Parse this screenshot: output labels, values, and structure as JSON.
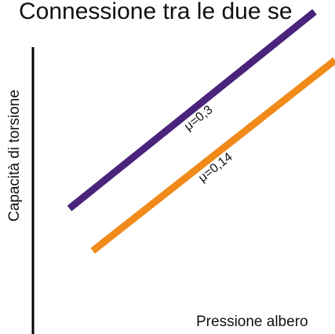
{
  "header": {
    "caption": "Connessione tra le due se"
  },
  "chart_data": {
    "type": "line",
    "title": "",
    "xlabel": "Pressione albero",
    "ylabel": "Capacità di torsione",
    "xlim": [
      0,
      10
    ],
    "ylim": [
      0,
      10
    ],
    "grid": false,
    "legend": "none",
    "series": [
      {
        "name": "μ=0,3",
        "color": "#4a237c",
        "x": [
          0.9,
          9.3
        ],
        "y": [
          3.5,
          10.0
        ]
      },
      {
        "name": "μ=0,14",
        "color": "#f08a1a",
        "x": [
          1.7,
          10.0
        ],
        "y": [
          2.1,
          8.4
        ]
      }
    ]
  }
}
